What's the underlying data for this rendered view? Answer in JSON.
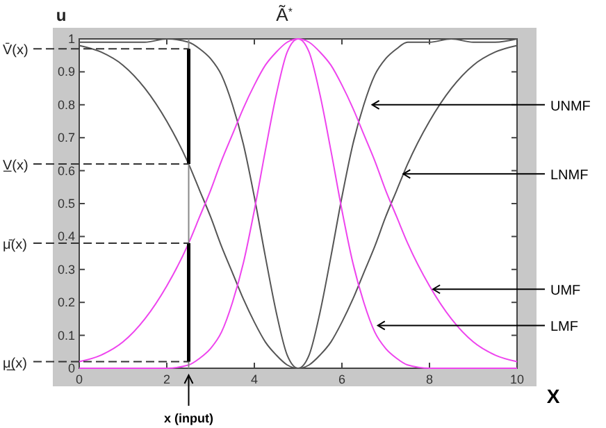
{
  "chart_data": {
    "type": "line",
    "title": "Ã$^{*}$",
    "xlabel": "X",
    "ylabel": "u",
    "x": [
      0,
      0.5,
      1,
      1.5,
      2,
      2.5,
      2.75,
      3,
      3.25,
      3.5,
      3.75,
      4,
      4.25,
      4.5,
      4.75,
      5,
      5.25,
      5.5,
      5.75,
      6,
      6.25,
      6.5,
      6.75,
      7,
      7.25,
      7.5,
      8,
      8.5,
      9,
      9.5,
      10
    ],
    "series": [
      {
        "name": "UNMF",
        "color": "#555555",
        "values": [
          0.99,
          0.99,
          0.99,
          0.99,
          1,
          0.99,
          0.97,
          0.94,
          0.89,
          0.8,
          0.68,
          0.52,
          0.34,
          0.17,
          0.04,
          0,
          0.04,
          0.17,
          0.34,
          0.52,
          0.68,
          0.8,
          0.89,
          0.94,
          0.97,
          0.99,
          0.99,
          1,
          0.99,
          0.99,
          1
        ]
      },
      {
        "name": "LNMF",
        "color": "#555555",
        "values": [
          0.98,
          0.96,
          0.92,
          0.85,
          0.75,
          0.62,
          0.54,
          0.46,
          0.37,
          0.29,
          0.21,
          0.14,
          0.08,
          0.04,
          0.01,
          0,
          0.01,
          0.04,
          0.08,
          0.14,
          0.21,
          0.29,
          0.37,
          0.46,
          0.54,
          0.62,
          0.75,
          0.85,
          0.92,
          0.96,
          0.98
        ]
      },
      {
        "name": "UMF",
        "color": "#ee44ee",
        "values": [
          0.02,
          0.04,
          0.08,
          0.15,
          0.25,
          0.38,
          0.46,
          0.54,
          0.63,
          0.71,
          0.79,
          0.86,
          0.92,
          0.96,
          0.99,
          1,
          0.99,
          0.96,
          0.92,
          0.86,
          0.79,
          0.71,
          0.63,
          0.54,
          0.46,
          0.38,
          0.25,
          0.15,
          0.08,
          0.04,
          0.02
        ]
      },
      {
        "name": "LMF",
        "color": "#ee44ee",
        "values": [
          0,
          0,
          0,
          0,
          0,
          0.01,
          0.03,
          0.06,
          0.11,
          0.2,
          0.32,
          0.48,
          0.66,
          0.83,
          0.96,
          1,
          0.96,
          0.83,
          0.66,
          0.48,
          0.32,
          0.2,
          0.11,
          0.06,
          0.03,
          0.01,
          0,
          0,
          0,
          0,
          0
        ]
      }
    ],
    "xlim": [
      0,
      10
    ],
    "xticks": [
      0,
      2,
      4,
      6,
      8,
      10
    ],
    "ylim": [
      0,
      1
    ],
    "yticks": [
      0,
      0.1,
      0.2,
      0.3,
      0.4,
      0.5,
      0.6,
      0.7,
      0.8,
      0.9,
      1
    ],
    "ref_lines": [
      {
        "axis": "y",
        "value": 0.97,
        "label": "V̄(x)",
        "line_style": "dashed"
      },
      {
        "axis": "y",
        "value": 0.62,
        "label": "V̲(x)",
        "line_style": "dashed"
      },
      {
        "axis": "y",
        "value": 0.38,
        "label": "μ̄(x)",
        "line_style": "dashed"
      },
      {
        "axis": "y",
        "value": 0.02,
        "label": "μ̲(x)",
        "line_style": "dashed"
      },
      {
        "axis": "x",
        "value": 2.5,
        "label": "x (input)"
      }
    ],
    "grid": false,
    "legend": false,
    "marker": "none",
    "line_style": "solid"
  }
}
